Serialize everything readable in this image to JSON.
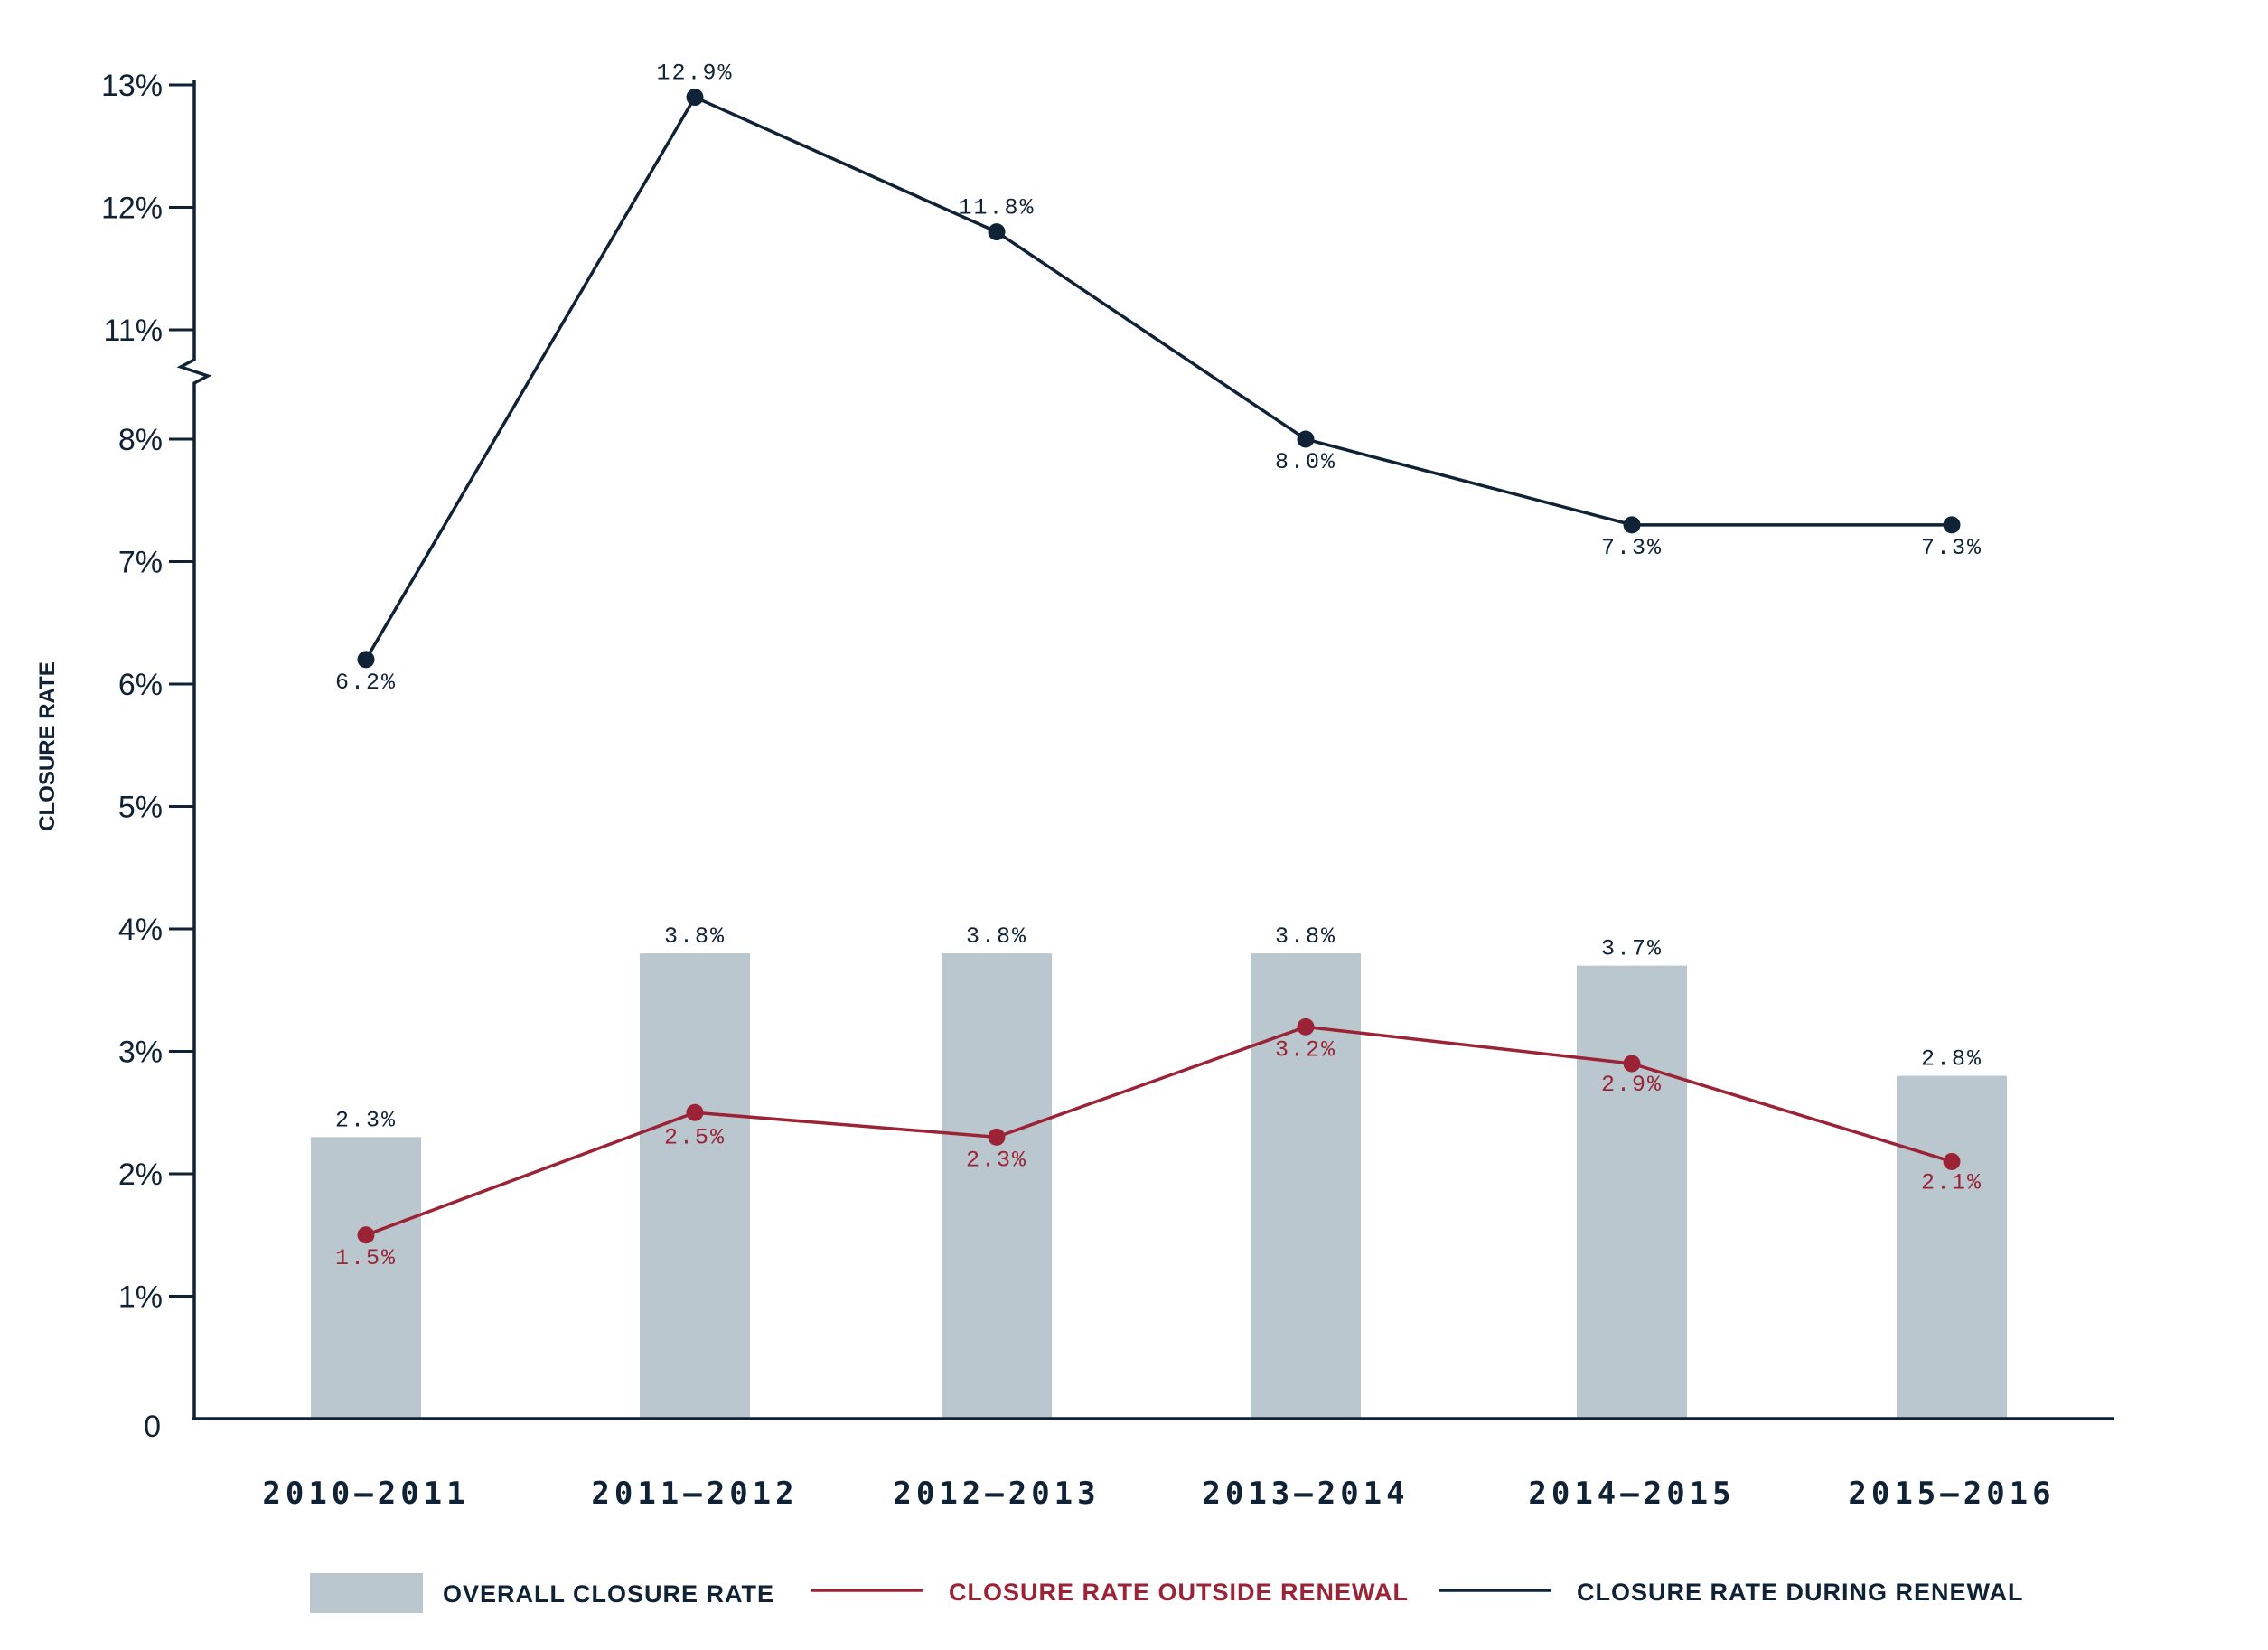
{
  "chart_data": {
    "type": "bar",
    "title": "",
    "xlabel": "",
    "ylabel": "CLOSURE RATE",
    "categories": [
      "2010–2011",
      "2011–2012",
      "2012–2013",
      "2013–2014",
      "2014–2015",
      "2015–2016"
    ],
    "y_ticks": [
      "0",
      "1%",
      "2%",
      "3%",
      "4%",
      "5%",
      "6%",
      "7%",
      "8%",
      "11%",
      "12%",
      "13%"
    ],
    "y_axis_break": {
      "lower_max": 8,
      "upper_min": 11
    },
    "ylim": [
      0,
      13
    ],
    "grid": false,
    "legend_position": "bottom",
    "series": [
      {
        "name": "OVERALL CLOSURE RATE",
        "kind": "bar",
        "color": "#bac7cf",
        "values": [
          2.3,
          3.8,
          3.8,
          3.8,
          3.7,
          2.8
        ],
        "labels": [
          "2.3%",
          "3.8%",
          "3.8%",
          "3.8%",
          "3.7%",
          "2.8%"
        ]
      },
      {
        "name": "CLOSURE RATE OUTSIDE RENEWAL",
        "kind": "line",
        "color": "#9b2335",
        "values": [
          1.5,
          2.5,
          2.3,
          3.2,
          2.9,
          2.1
        ],
        "labels": [
          "1.5%",
          "2.5%",
          "2.3%",
          "3.2%",
          "2.9%",
          "2.1%"
        ]
      },
      {
        "name": "CLOSURE RATE DURING RENEWAL",
        "kind": "line",
        "color": "#0f2236",
        "values": [
          6.2,
          12.9,
          11.8,
          8.0,
          7.3,
          7.3
        ],
        "labels": [
          "6.2%",
          "12.9%",
          "11.8%",
          "8.0%",
          "7.3%",
          "7.3%"
        ]
      }
    ]
  }
}
